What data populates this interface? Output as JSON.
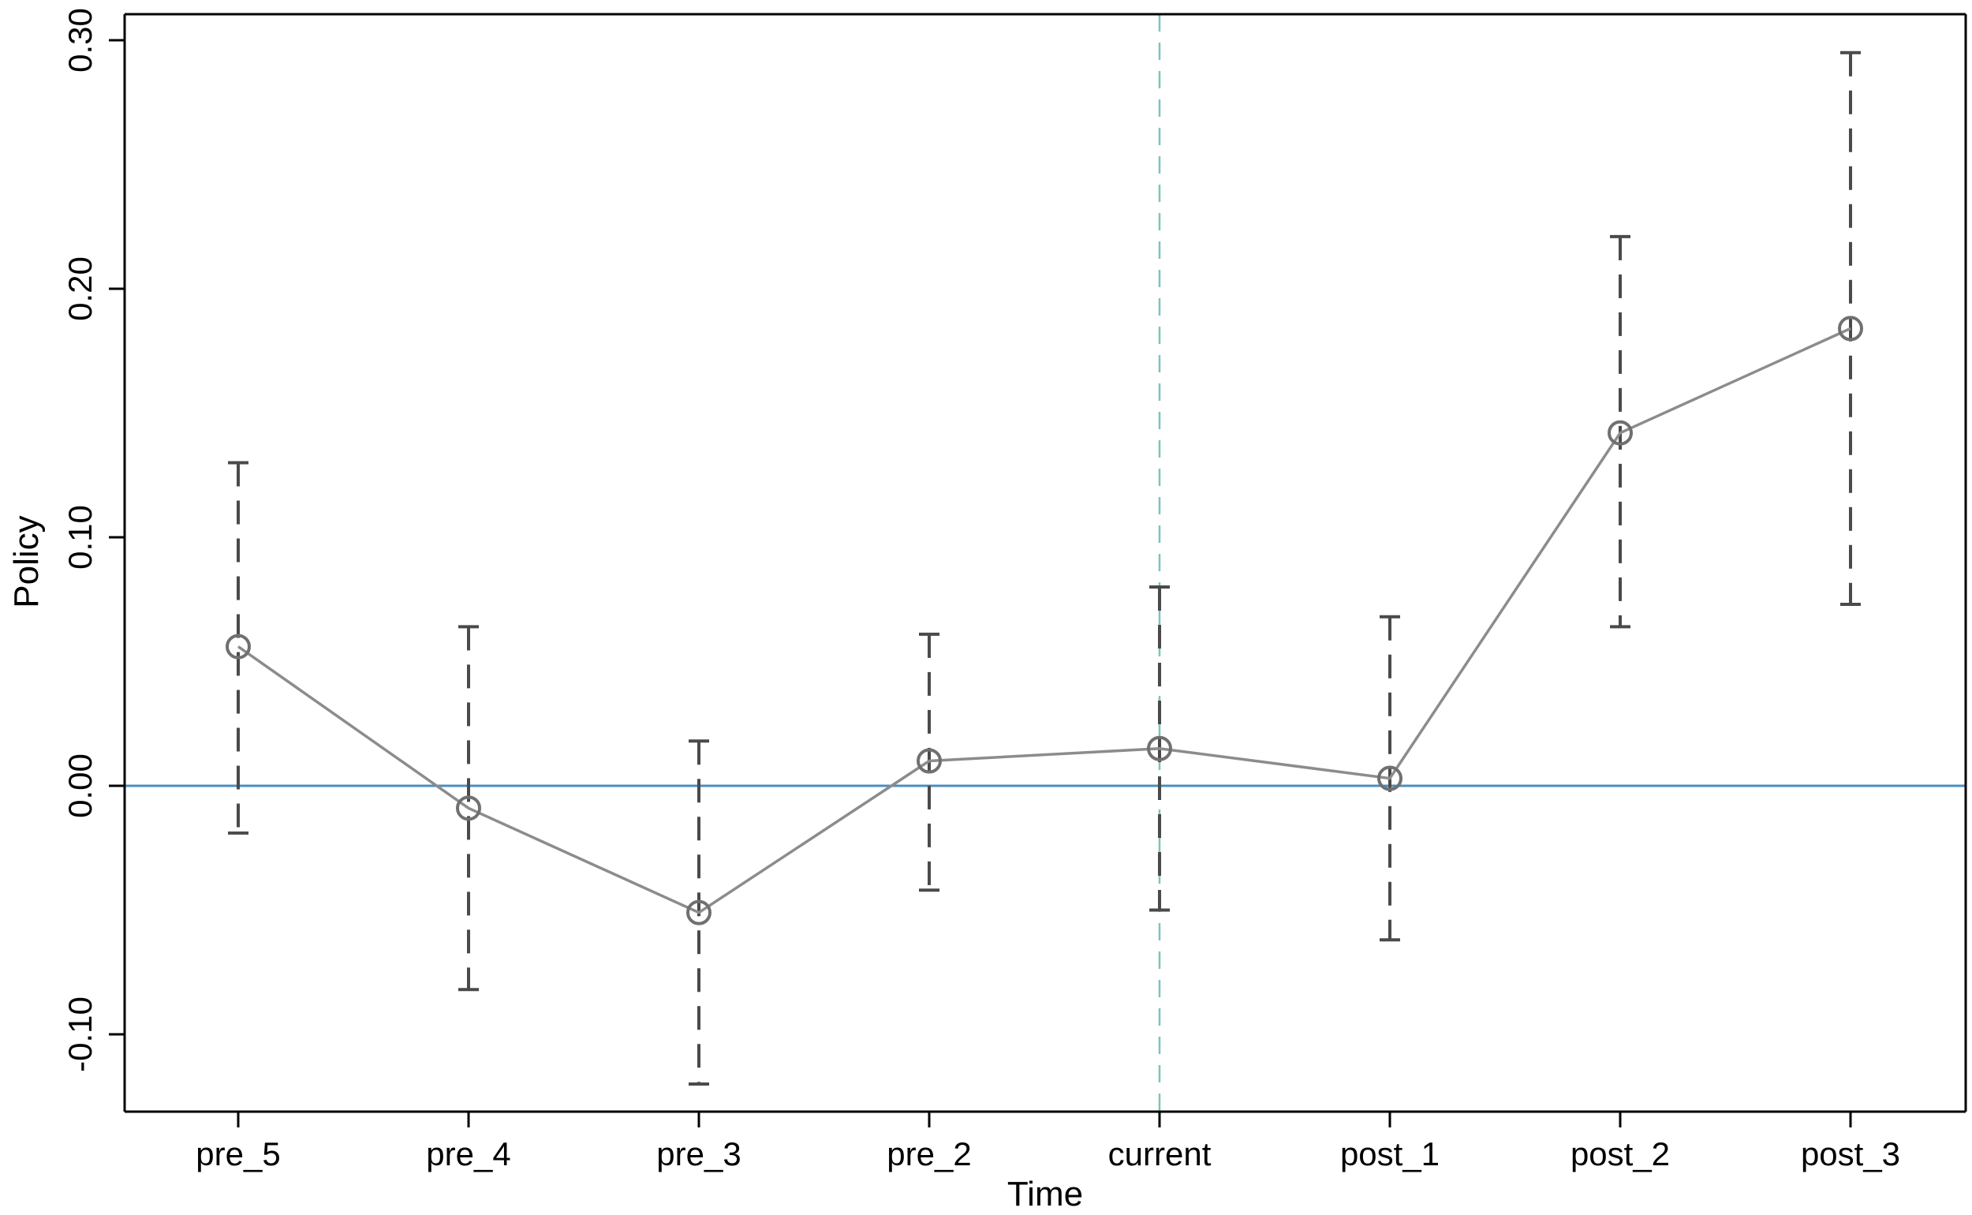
{
  "chart_data": {
    "type": "line",
    "title": "",
    "xlabel": "Time",
    "ylabel": "Policy",
    "categories": [
      "pre_5",
      "pre_4",
      "pre_3",
      "pre_2",
      "current",
      "post_1",
      "post_2",
      "post_3"
    ],
    "series": [
      {
        "values": [
          0.056,
          -0.009,
          -0.051,
          0.01,
          0.015,
          0.003,
          0.142,
          0.184
        ],
        "ci_upper": [
          0.13,
          0.064,
          0.018,
          0.061,
          0.08,
          0.068,
          0.221,
          0.295
        ],
        "ci_lower": [
          -0.019,
          -0.082,
          -0.12,
          -0.042,
          -0.05,
          -0.062,
          0.064,
          0.073
        ]
      }
    ],
    "ylim": [
      -0.13,
      0.31
    ],
    "y_ticks": [
      -0.1,
      0.0,
      0.1,
      0.2,
      0.3
    ],
    "y_tick_labels": [
      "-0.10",
      "0.00",
      "0.10",
      "0.20",
      "0.30"
    ],
    "reference_hline": 0.0,
    "reference_vline_category": "current",
    "grid": false,
    "colors": {
      "line": "#8c8c8c",
      "marker": "#707070",
      "error_bar": "#4a4a4a",
      "hline": "#4a8ec2",
      "vline": "#7fc4b8",
      "axis": "#000000"
    }
  }
}
